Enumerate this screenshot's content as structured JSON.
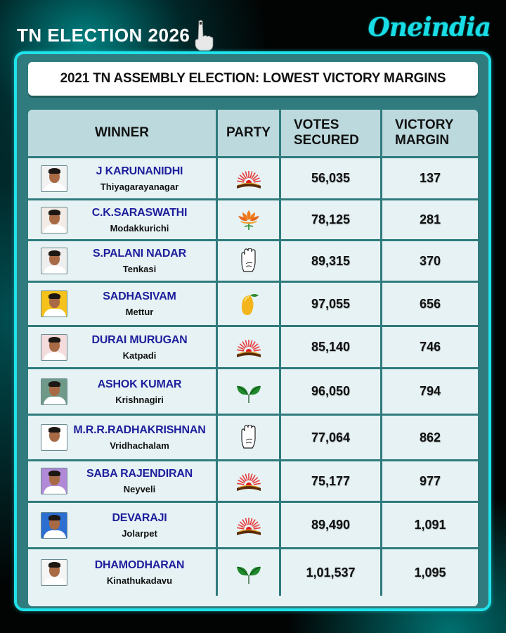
{
  "header": {
    "title": "TN ELECTION 2026",
    "title_icon": "inked-finger-icon",
    "brand": "Oneindia"
  },
  "card": {
    "title": "2021 TN ASSEMBLY ELECTION: LOWEST VICTORY MARGINS"
  },
  "colors": {
    "frame_border": "#1fe2ea",
    "frame_fill": "#2f7b7d",
    "header_row": "#bcd9dd",
    "row_fill": "#e6f2f4",
    "name_text": "#1e1e9c",
    "brand": "#19dde6"
  },
  "table": {
    "columns": [
      "WINNER",
      "PARTY",
      "VOTES SECURED",
      "VICTORY MARGIN"
    ],
    "column_lines": {
      "votes": [
        "VOTES",
        "SECURED"
      ],
      "margin": [
        "VICTORY",
        "MARGIN"
      ]
    },
    "rows": [
      {
        "name": "J KARUNANIDHI",
        "constituency": "Thiyagarayanagar",
        "party_symbol": "rising-sun-icon",
        "votes": "56,035",
        "margin": "137",
        "photo_bg": "#f2f2f2"
      },
      {
        "name": "C.K.SARASWATHI",
        "constituency": "Modakkurichi",
        "party_symbol": "lotus-icon",
        "votes": "78,125",
        "margin": "281",
        "photo_bg": "#f3ece6"
      },
      {
        "name": "S.PALANI NADAR",
        "constituency": "Tenkasi",
        "party_symbol": "hand-icon",
        "votes": "89,315",
        "margin": "370",
        "photo_bg": "#eeeeee"
      },
      {
        "name": "SADHASIVAM",
        "constituency": "Mettur",
        "party_symbol": "mango-icon",
        "votes": "97,055",
        "margin": "656",
        "photo_bg": "#f4c21a"
      },
      {
        "name": "DURAI MURUGAN",
        "constituency": "Katpadi",
        "party_symbol": "rising-sun-icon",
        "votes": "85,140",
        "margin": "746",
        "photo_bg": "#f4dcdc"
      },
      {
        "name": "ASHOK KUMAR",
        "constituency": "Krishnagiri",
        "party_symbol": "two-leaves-icon",
        "votes": "96,050",
        "margin": "794",
        "photo_bg": "#6f9a8a"
      },
      {
        "name": "M.R.R.RADHAKRISHNAN",
        "constituency": "Vridhachalam",
        "party_symbol": "hand-icon",
        "votes": "77,064",
        "margin": "862",
        "photo_bg": "#ffffff"
      },
      {
        "name": "SABA RAJENDIRAN",
        "constituency": "Neyveli",
        "party_symbol": "rising-sun-icon",
        "votes": "75,177",
        "margin": "977",
        "photo_bg": "#b08ad6"
      },
      {
        "name": "DEVARAJI",
        "constituency": "Jolarpet",
        "party_symbol": "rising-sun-icon",
        "votes": "89,490",
        "margin": "1,091",
        "photo_bg": "#2c6fd1"
      },
      {
        "name": "DHAMODHARAN",
        "constituency": "Kinathukadavu",
        "party_symbol": "two-leaves-icon",
        "votes": "1,01,537",
        "margin": "1,095",
        "photo_bg": "#f5f5f5"
      }
    ]
  }
}
